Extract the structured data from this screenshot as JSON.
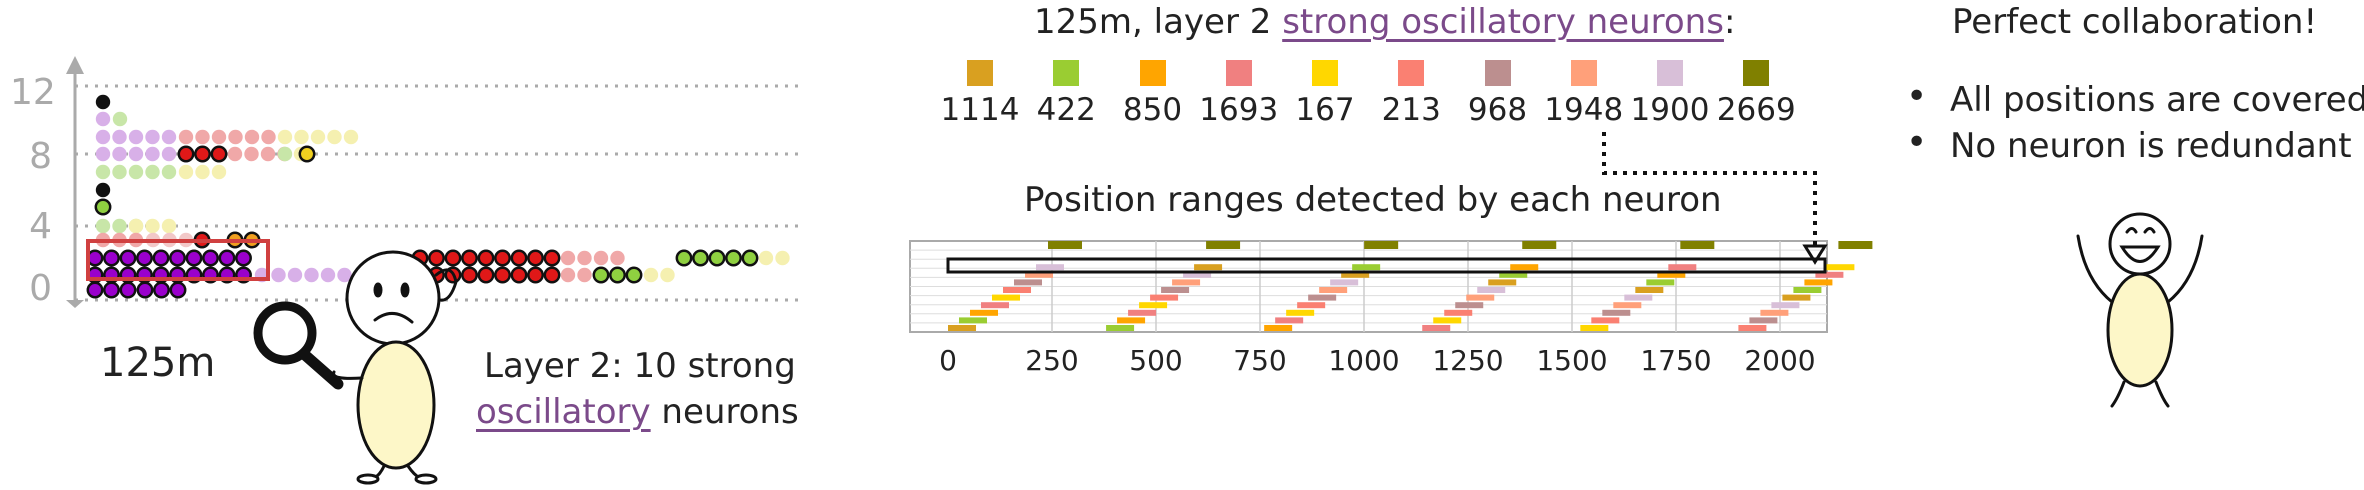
{
  "left_panel": {
    "y_ticks": [
      "0",
      "4",
      "8",
      "12"
    ],
    "model_label": "125m",
    "caption_line1": "Layer 2: 10 strong",
    "caption_highlight": "oscillatory",
    "caption_rest": " neurons"
  },
  "middle_panel": {
    "title_prefix": "125m, layer 2 ",
    "title_highlight": "strong oscillatory neurons",
    "title_suffix": ":",
    "legend": [
      {
        "label": "1114",
        "color": "#d9a020"
      },
      {
        "label": "422",
        "color": "#9acd32"
      },
      {
        "label": "850",
        "color": "#ffa500"
      },
      {
        "label": "1693",
        "color": "#f08080"
      },
      {
        "label": "167",
        "color": "#ffd700"
      },
      {
        "label": "213",
        "color": "#fa8072"
      },
      {
        "label": "968",
        "color": "#bc8f8f"
      },
      {
        "label": "1948",
        "color": "#ffa07a"
      },
      {
        "label": "1900",
        "color": "#d8bfd8"
      },
      {
        "label": "2669",
        "color": "#808000"
      }
    ],
    "ranges_title": "Position ranges detected by each neuron",
    "x_ticks": [
      "0",
      "250",
      "500",
      "750",
      "1000",
      "1250",
      "1500",
      "1750",
      "2000"
    ]
  },
  "right_panel": {
    "title": "Perfect collaboration!",
    "bullets": [
      "All positions are covered",
      "No neuron is redundant"
    ]
  }
}
